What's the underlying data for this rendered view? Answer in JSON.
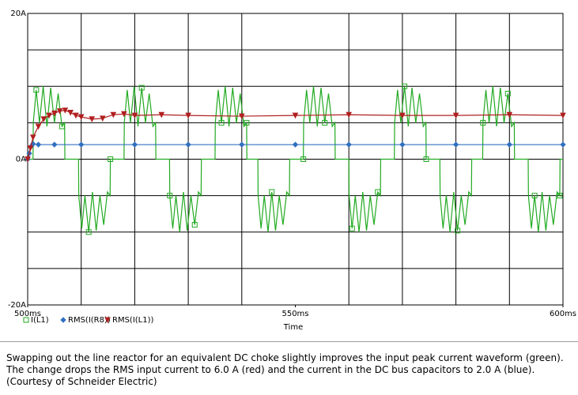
{
  "chart_data": {
    "type": "line",
    "xlabel": "Time",
    "xlim": [
      500,
      600
    ],
    "ylim": [
      -20,
      20
    ],
    "xticks": [
      {
        "value": 500,
        "label": "500ms"
      },
      {
        "value": 550,
        "label": "550ms"
      },
      {
        "value": 600,
        "label": "600ms"
      }
    ],
    "yticks": [
      {
        "value": 20,
        "label": "20A"
      },
      {
        "value": 0,
        "label": "0A"
      },
      {
        "value": -20,
        "label": "-20A"
      }
    ],
    "xgrid": [
      510,
      520,
      530,
      540,
      560,
      570,
      580,
      590
    ],
    "ygrid": [
      -15,
      -10,
      -5,
      5,
      10,
      15
    ],
    "grid": true,
    "legend": "bottom-left",
    "series": [
      {
        "name": "I(L1)",
        "color": "#22aa22",
        "marker": "square",
        "x": [
          500,
          501,
          501.05,
          501.6,
          502.2,
          502.9,
          503.6,
          504.3,
          505,
          505.7,
          506.4,
          506.9,
          506.95,
          509.5,
          509.55,
          510.1,
          510.7,
          511.4,
          512.1,
          512.8,
          513.5,
          514.2,
          514.9,
          515.4,
          515.45,
          518,
          518.05,
          518.6,
          519.2,
          519.9,
          520.6,
          521.3,
          522,
          522.7,
          523.4,
          523.9,
          523.95,
          526.5,
          526.55,
          527.1,
          527.7,
          528.4,
          529.1,
          529.8,
          530.5,
          531.2,
          531.9,
          532.4,
          532.45,
          535,
          535.05,
          535.6,
          536.2,
          536.9,
          537.6,
          538.3,
          539,
          539.7,
          540.4,
          540.9,
          540.95,
          543,
          543.05,
          543.6,
          544.2,
          544.9,
          545.6,
          546.3,
          547,
          547.7,
          548.4,
          548.9,
          548.95,
          551.5,
          551.55,
          552.1,
          552.7,
          553.4,
          554.1,
          554.8,
          555.5,
          556.2,
          556.9,
          557.4,
          557.45,
          560,
          560.05,
          560.6,
          561.2,
          561.9,
          562.6,
          563.3,
          564,
          564.7,
          565.4,
          565.9,
          565.95,
          568.5,
          568.55,
          569.1,
          569.7,
          570.4,
          571.1,
          571.8,
          572.5,
          573.2,
          573.9,
          574.4,
          574.45,
          577,
          577.05,
          577.6,
          578.2,
          578.9,
          579.6,
          580.3,
          581,
          581.7,
          582.4,
          582.9,
          582.95,
          585,
          585.05,
          585.6,
          586.2,
          586.9,
          587.6,
          588.3,
          589,
          589.7,
          590.4,
          590.9,
          590.95,
          593.5,
          593.55,
          594.1,
          594.7,
          595.4,
          596.1,
          596.8,
          597.5,
          598.2,
          598.9,
          599.4,
          599.45,
          600
        ],
        "values": [
          0,
          0,
          5,
          9.5,
          5,
          10,
          4.5,
          9.8,
          5,
          9,
          4.5,
          5,
          0,
          0,
          -5,
          -9.5,
          -5,
          -10,
          -4.5,
          -9.8,
          -5,
          -9,
          -4.5,
          -5,
          0,
          0,
          5,
          9.5,
          5,
          10,
          4.5,
          9.8,
          5,
          9,
          4.5,
          5,
          0,
          0,
          -5,
          -9.5,
          -5,
          -10,
          -4.5,
          -9.8,
          -5,
          -9,
          -4.5,
          -5,
          0,
          0,
          5,
          9.5,
          5,
          10,
          4.5,
          9.8,
          5,
          9,
          4.5,
          5,
          0,
          0,
          -5,
          -9.5,
          -5,
          -10,
          -4.5,
          -9.8,
          -5,
          -9,
          -4.5,
          -5,
          0,
          0,
          5,
          9.5,
          5,
          10,
          4.5,
          9.8,
          5,
          9,
          4.5,
          5,
          0,
          0,
          -5,
          -9.5,
          -5,
          -10,
          -4.5,
          -9.8,
          -5,
          -9,
          -4.5,
          -5,
          0,
          0,
          5,
          9.5,
          5,
          10,
          4.5,
          9.8,
          5,
          9,
          4.5,
          5,
          0,
          0,
          -5,
          -9.5,
          -5,
          -10,
          -4.5,
          -9.8,
          -5,
          -9,
          -4.5,
          -5,
          0,
          0,
          5,
          9.5,
          5,
          10,
          4.5,
          9.8,
          5,
          9,
          4.5,
          5,
          0,
          0,
          -5,
          -9.5,
          -5,
          -10,
          -4.5,
          -9.8,
          -5,
          -9,
          -4.5,
          -5,
          0,
          0
        ]
      },
      {
        "name": "RMS(I(R8))",
        "color": "#3070c0",
        "marker": "diamond",
        "x": [
          500,
          500.3,
          500.7,
          501,
          502,
          505,
          510,
          520,
          530,
          540,
          550,
          560,
          570,
          580,
          590,
          600
        ],
        "values": [
          0,
          0.8,
          1.8,
          2.1,
          2.0,
          2.0,
          2.0,
          2.0,
          2.0,
          2.0,
          2.0,
          2.0,
          2.0,
          2.0,
          2.0,
          2.0
        ]
      },
      {
        "name": "RMS(I(L1))",
        "color": "#b02020",
        "marker": "triangle",
        "x": [
          500,
          500.5,
          501,
          502,
          503,
          504,
          505,
          506,
          507,
          508,
          509,
          510,
          512,
          514,
          516,
          518,
          520,
          525,
          530,
          540,
          550,
          560,
          570,
          580,
          590,
          600
        ],
        "values": [
          0,
          1.5,
          3,
          4.5,
          5.5,
          6,
          6.3,
          6.6,
          6.7,
          6.4,
          6,
          5.8,
          5.5,
          5.6,
          6.1,
          6.2,
          6,
          6.1,
          6,
          5.9,
          6,
          6.1,
          6,
          6,
          6.1,
          6
        ]
      }
    ]
  },
  "caption": "Swapping out the line reactor for an equivalent DC choke slightly improves the input peak current waveform (green). The change drops the RMS input current to 6.0 A (red) and the current in the DC bus capacitors to 2.0 A (blue). (Courtesy of Schneider Electric)"
}
